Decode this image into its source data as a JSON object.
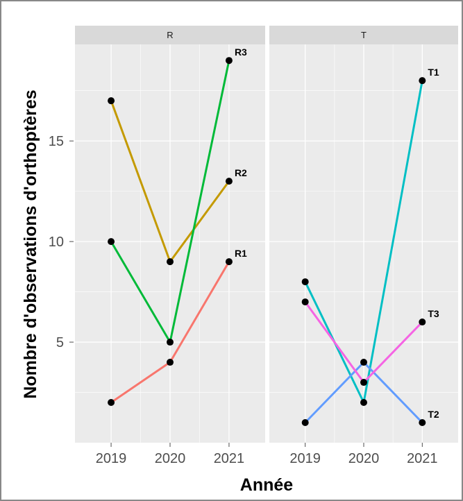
{
  "chart_data": {
    "type": "line",
    "xlabel": "Année",
    "ylabel": "Nombre d'observations d'orthoptères",
    "x": [
      2019,
      2020,
      2021
    ],
    "ylim": [
      0,
      19.8
    ],
    "yticks": [
      5,
      10,
      15
    ],
    "grid": true,
    "legend": "none",
    "panels": [
      {
        "facet": "R",
        "series": [
          {
            "name": "R1",
            "color": "#F8766D",
            "values": [
              2,
              4,
              9
            ]
          },
          {
            "name": "R2",
            "color": "#C49A00",
            "values": [
              17,
              9,
              13
            ]
          },
          {
            "name": "R3",
            "color": "#00BA38",
            "values": [
              10,
              5,
              19
            ]
          }
        ]
      },
      {
        "facet": "T",
        "series": [
          {
            "name": "T1",
            "color": "#00BFC4",
            "values": [
              8,
              2,
              18
            ]
          },
          {
            "name": "T2",
            "color": "#619CFF",
            "values": [
              1,
              4,
              1
            ]
          },
          {
            "name": "T3",
            "color": "#F564E3",
            "values": [
              7,
              3,
              6
            ]
          }
        ]
      }
    ]
  }
}
